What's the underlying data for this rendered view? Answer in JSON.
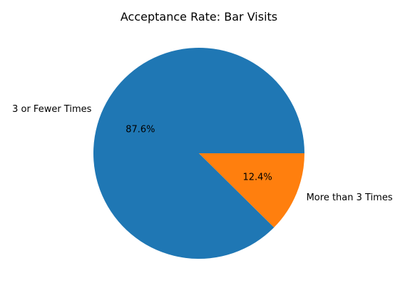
{
  "chart_data": {
    "type": "pie",
    "title": "Acceptance Rate: Bar Visits",
    "start_angle_deg": 0,
    "direction": "counterclockwise",
    "slices": [
      {
        "label": "3 or Fewer Times",
        "value": 87.6,
        "pct_label": "87.6%",
        "color": "#1f77b4"
      },
      {
        "label": "More than 3 Times",
        "value": 12.4,
        "pct_label": "12.4%",
        "color": "#ff7f0e"
      }
    ]
  }
}
